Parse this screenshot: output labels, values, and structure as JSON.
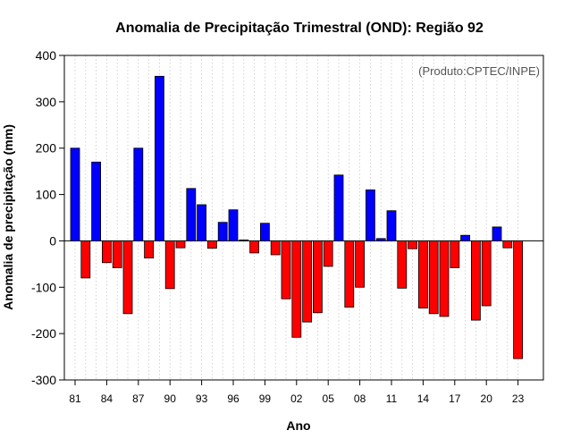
{
  "chart_data": {
    "type": "bar",
    "title": "Anomalia de Precipitação Trimestral (OND): Região 92",
    "xlabel": "Ano",
    "ylabel": "Anomalia de precipitação (mm)",
    "source_note": "(Produto:CPTEC/INPE)",
    "ylim": [
      -300,
      400
    ],
    "yticks": [
      -300,
      -200,
      -100,
      0,
      100,
      200,
      300,
      400
    ],
    "grid": "vertical dotted",
    "x_tick_labels": [
      "81",
      "84",
      "87",
      "90",
      "93",
      "96",
      "99",
      "02",
      "05",
      "08",
      "11",
      "14",
      "17",
      "20",
      "23"
    ],
    "x_tick_every": 3,
    "categories": [
      "81",
      "82",
      "83",
      "84",
      "85",
      "86",
      "87",
      "88",
      "89",
      "90",
      "91",
      "92",
      "93",
      "94",
      "95",
      "96",
      "97",
      "98",
      "99",
      "00",
      "01",
      "02",
      "03",
      "04",
      "05",
      "06",
      "07",
      "08",
      "09",
      "10",
      "11",
      "12",
      "13",
      "14",
      "15",
      "16",
      "17",
      "18",
      "19",
      "20",
      "21",
      "22",
      "23"
    ],
    "values": [
      200,
      -80,
      170,
      -47,
      -58,
      -157,
      200,
      -37,
      355,
      -103,
      -15,
      113,
      78,
      -16,
      40,
      67,
      2,
      -26,
      38,
      -30,
      -125,
      -208,
      -175,
      -155,
      -55,
      142,
      -143,
      -100,
      110,
      5,
      65,
      -102,
      -17,
      -145,
      -157,
      -163,
      -58,
      12,
      -171,
      -140,
      30,
      -15,
      -254
    ],
    "colors": {
      "positive": "#0000ff",
      "negative": "#ff0000",
      "stroke": "#000000",
      "grid": "#c8c8c8"
    }
  }
}
